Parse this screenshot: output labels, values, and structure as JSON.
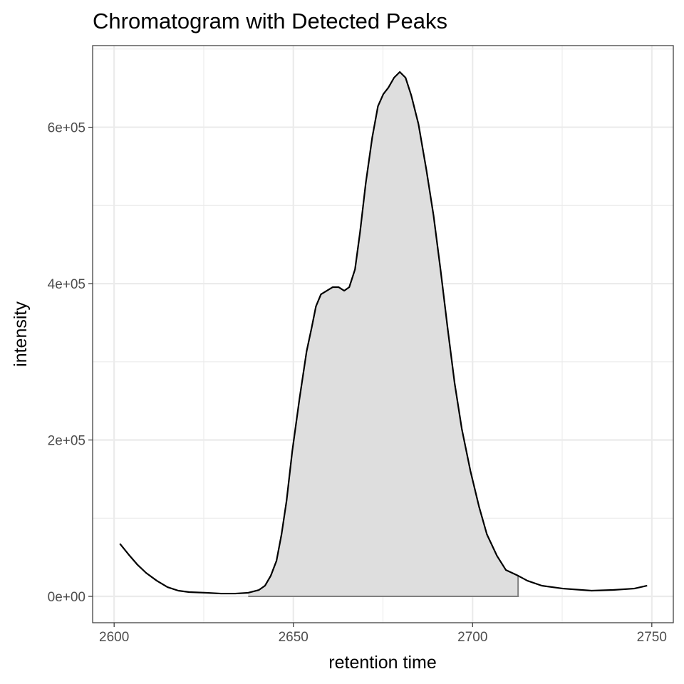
{
  "chart_data": {
    "type": "line",
    "title": "Chromatogram with Detected Peaks",
    "xlabel": "retention time",
    "ylabel": "intensity",
    "xlim": [
      2594,
      2756
    ],
    "ylim": [
      -33700,
      704400
    ],
    "x_ticks": [
      2600,
      2650,
      2700,
      2750
    ],
    "x_tick_labels": [
      "2600",
      "2650",
      "2700",
      "2750"
    ],
    "y_ticks": [
      0,
      200000,
      400000,
      600000
    ],
    "y_tick_labels": [
      "0e+00",
      "2e+05",
      "4e+05",
      "6e+05"
    ],
    "grid": true,
    "legend": "none",
    "colors": {
      "line": "#000000",
      "peak_fill": "#dedede",
      "peak_outline": "#7f7f7f",
      "grid": "#ebebeb",
      "panel_border": "#333333"
    },
    "series": [
      {
        "x": [
          2601.6,
          2604.0,
          2606.4,
          2608.9,
          2611.9,
          2614.9,
          2617.9,
          2620.9,
          2625.8,
          2629.8,
          2633.8,
          2637.4,
          2640.4,
          2642.1,
          2643.7,
          2645.3,
          2646.7,
          2648.1,
          2649.7,
          2651.7,
          2653.7,
          2655.1,
          2656.3,
          2657.7,
          2661.0,
          2662.6,
          2664.2,
          2665.6,
          2667.2,
          2668.6,
          2670.2,
          2672.0,
          2673.6,
          2675.1,
          2676.5,
          2678.1,
          2679.7,
          2681.3,
          2682.9,
          2684.9,
          2687.1,
          2689.1,
          2691.1,
          2693.0,
          2695.0,
          2697.0,
          2699.4,
          2701.8,
          2704.0,
          2706.8,
          2709.3,
          2712.7,
          2715.3,
          2719.3,
          2725.2,
          2733.2,
          2739.2,
          2745.1,
          2748.7
        ],
        "y": [
          67400,
          53800,
          41000,
          30100,
          20000,
          11800,
          7300,
          5500,
          4600,
          3600,
          3600,
          4600,
          8200,
          13700,
          26400,
          45600,
          79300,
          122100,
          185900,
          252400,
          313500,
          343500,
          370900,
          386300,
          395500,
          395500,
          390900,
          395500,
          418200,
          465600,
          528500,
          586800,
          626900,
          642400,
          650600,
          663400,
          670700,
          663400,
          640600,
          604100,
          545800,
          487500,
          416400,
          344400,
          272400,
          214100,
          160400,
          114800,
          79300,
          51900,
          33700,
          26400,
          20000,
          13700,
          10000,
          7300,
          8200,
          10000,
          13700
        ]
      }
    ],
    "detected_peaks": [
      {
        "rt_min": 2637.4,
        "rt_max": 2712.7,
        "baseline": 0
      }
    ]
  }
}
